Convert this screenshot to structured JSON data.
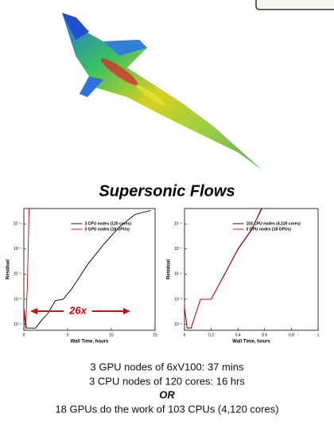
{
  "title": "Supersonic Flows",
  "caption": [
    "3 GPU nodes of 6xV100: 37 mins",
    "3 CPU nodes of 120 cores: 16 hrs",
    "OR",
    "18 GPUs do the work of 103 CPUs (4,120 cores)"
  ],
  "chart_data": [
    {
      "type": "line",
      "xlabel": "Wall Time, hours",
      "ylabel": "Residual",
      "log_y": true,
      "annotation": "26x",
      "xlim": [
        0,
        15
      ],
      "xticks": [
        0,
        5,
        10,
        15
      ],
      "ylim": [
        0.3,
        6e-11
      ],
      "yticks": [
        {
          "value": 0.1,
          "label": "10⁻¹"
        },
        {
          "value": 0.001,
          "label": "10⁻³"
        },
        {
          "value": 1e-05,
          "label": "10⁻⁵"
        },
        {
          "value": 1e-07,
          "label": "10⁻⁷"
        },
        {
          "value": 1e-09,
          "label": "10⁻⁹"
        }
      ],
      "series": [
        {
          "name": "3 CPU nodes (120 cores)",
          "color": "#000000",
          "x": [
            0,
            0.27,
            1.36,
            2,
            2.7,
            3.6,
            4.5,
            5.5,
            7.3,
            9.1,
            10.9,
            12.7,
            14.5
          ],
          "values": [
            0.005,
            0.2,
            0.2,
            0.05,
            0.015,
            0.0013,
            0.001,
            0.00014,
            1.7e-06,
            4.5e-08,
            1.8e-09,
            1.8e-10,
            8.5e-11
          ]
        },
        {
          "name": "3 GPU nodes (18 GPUs)",
          "color": "#d40000",
          "x": [
            0,
            0.2,
            0.4,
            0.6
          ],
          "values": [
            0.005,
            0.2,
            0.0001,
            6e-11
          ]
        }
      ]
    },
    {
      "type": "line",
      "xlabel": "Wall Time, hours",
      "ylabel": "Residual",
      "log_y": true,
      "xlim": [
        0,
        1
      ],
      "xticks": [
        0,
        0.2,
        0.4,
        0.6,
        0.8,
        1
      ],
      "ylim": [
        0.3,
        6e-11
      ],
      "yticks": [
        {
          "value": 0.1,
          "label": "10⁻¹"
        },
        {
          "value": 0.001,
          "label": "10⁻³"
        },
        {
          "value": 1e-05,
          "label": "10⁻⁵"
        },
        {
          "value": 1e-07,
          "label": "10⁻⁷"
        },
        {
          "value": 1e-09,
          "label": "10⁻⁹"
        }
      ],
      "series": [
        {
          "name": "103 CPU nodes (4,120 cores)",
          "color": "#000000",
          "x": [
            0,
            0.02,
            0.05,
            0.08,
            0.12,
            0.2,
            0.3,
            0.4,
            0.5,
            0.58
          ],
          "values": [
            0.005,
            0.2,
            0.2,
            0.02,
            0.001,
            0.001,
            1e-05,
            1e-07,
            3e-09,
            6e-11
          ]
        },
        {
          "name": "3 GPU nodes (18 GPUs)",
          "color": "#d40000",
          "x": [
            0,
            0.02,
            0.05,
            0.08,
            0.12,
            0.2,
            0.3,
            0.4,
            0.5,
            0.575
          ],
          "values": [
            0.005,
            0.2,
            0.2,
            0.02,
            0.001,
            0.001,
            1.1e-05,
            1.1e-07,
            3.3e-09,
            6e-11
          ]
        }
      ]
    }
  ]
}
